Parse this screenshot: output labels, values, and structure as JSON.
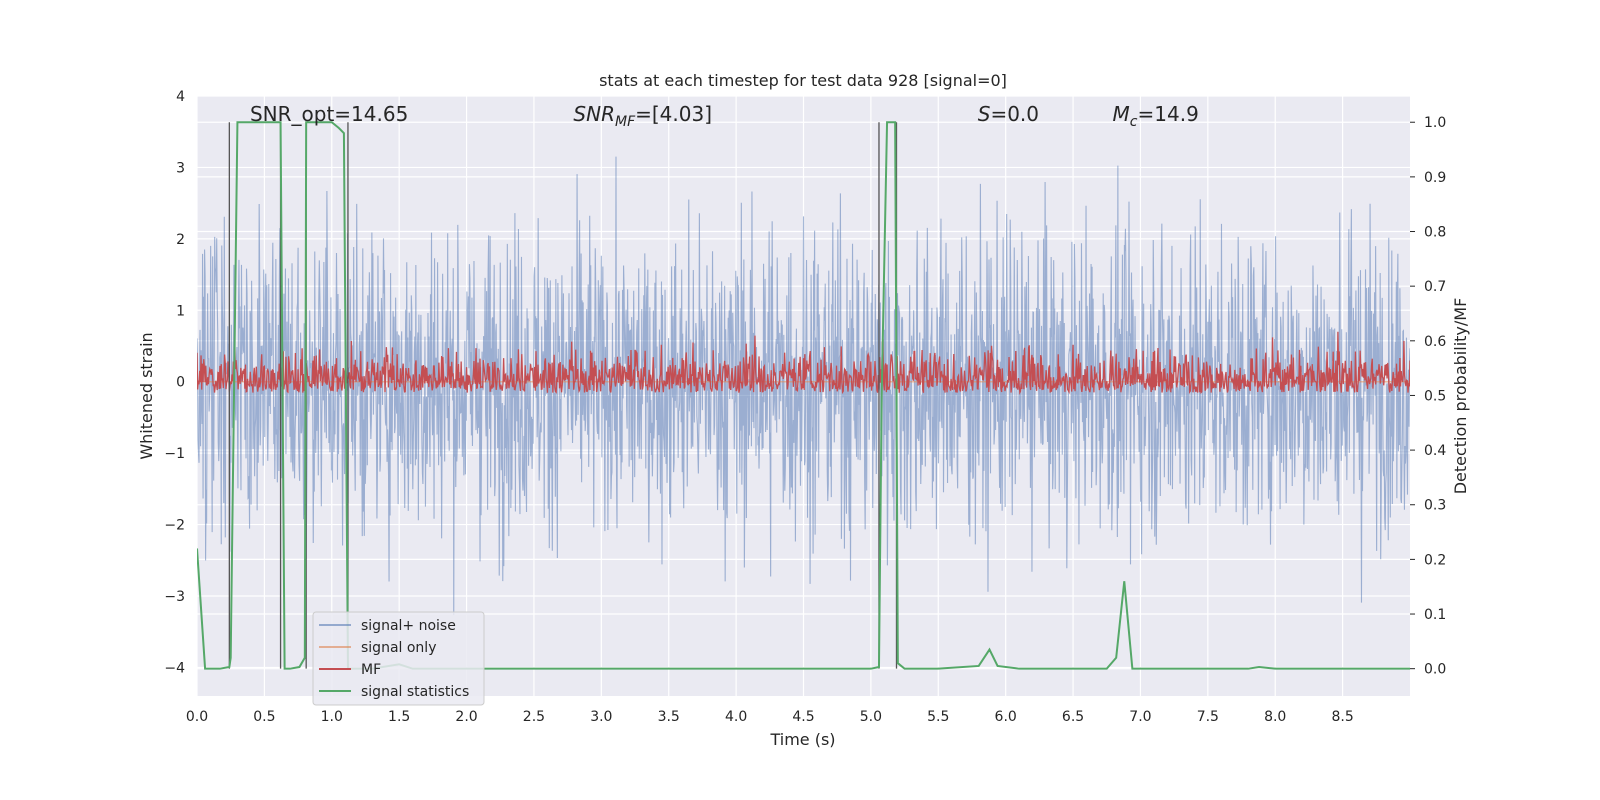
{
  "chart_data": {
    "type": "line",
    "title": "stats at each timestep for test data 928 [signal=0]",
    "xlabel": "Time (s)",
    "ylabel": "Whitened strain",
    "y2label": "Detection probability/MF",
    "xlim": [
      0,
      9.0
    ],
    "ylim": [
      -4.4,
      4.0
    ],
    "y2lim": [
      -0.05,
      1.048
    ],
    "x_ticks": [
      "0.0",
      "0.5",
      "1.0",
      "1.5",
      "2.0",
      "2.5",
      "3.0",
      "3.5",
      "4.0",
      "4.5",
      "5.0",
      "5.5",
      "6.0",
      "6.5",
      "7.0",
      "7.5",
      "8.0",
      "8.5"
    ],
    "y_ticks": [
      "4",
      "3",
      "2",
      "1",
      "0",
      "−1",
      "−2",
      "−3",
      "−4"
    ],
    "y2_ticks": [
      "1.0",
      "0.9",
      "0.8",
      "0.7",
      "0.6",
      "0.5",
      "0.4",
      "0.3",
      "0.2",
      "0.1",
      "0.0"
    ],
    "annotations": [
      {
        "text": "SNR_opt=14.65",
        "x": 0.2
      },
      {
        "text": "SNR",
        "sub": "MF",
        "suffix": "=[4.03]",
        "x": 2.6
      },
      {
        "text": "S",
        "suffix": "=0.0",
        "x": 5.6
      },
      {
        "text": "M",
        "sub": "c",
        "suffix": "=14.9",
        "x": 6.6
      }
    ],
    "legend": {
      "location": "lower-left",
      "entries": [
        "signal+ noise",
        "signal only",
        "MF",
        "signal statistics"
      ]
    },
    "colors": {
      "noise": "#4c72b0",
      "signal_only": "#dd8452",
      "mf": "#c44e52",
      "stats": "#55a868",
      "plot_bg": "#eaeaf2",
      "grid": "#ffffff",
      "vline": "#555555"
    },
    "series": [
      {
        "name": "signal statistics",
        "axis": "y2",
        "x": [
          0.0,
          0.06,
          0.17,
          0.24,
          0.25,
          0.3,
          0.6,
          0.62,
          0.65,
          0.69,
          0.76,
          0.8,
          0.81,
          0.87,
          0.9,
          1.0,
          1.05,
          1.09,
          1.12,
          1.2,
          1.3,
          1.5,
          1.6,
          2.0,
          3.0,
          4.0,
          5.0,
          5.06,
          5.08,
          5.12,
          5.13,
          5.18,
          5.2,
          5.25,
          5.3,
          5.5,
          5.8,
          5.88,
          5.94,
          6.1,
          6.5,
          6.75,
          6.82,
          6.88,
          6.94,
          7.0,
          7.5,
          7.8,
          7.88,
          8.0,
          9.0
        ],
        "y": [
          0.22,
          0.0,
          0.0,
          0.003,
          0.02,
          1.0,
          1.0,
          1.0,
          0.0,
          0.0,
          0.003,
          0.02,
          1.0,
          1.0,
          1.0,
          1.0,
          0.99,
          0.98,
          0.0,
          0.0,
          0.0,
          0.008,
          0.0,
          0.0,
          0.0,
          0.0,
          0.0,
          0.003,
          0.5,
          1.0,
          1.0,
          1.0,
          0.01,
          0.0,
          0.0,
          0.0,
          0.005,
          0.035,
          0.005,
          0.0,
          0.0,
          0.0,
          0.02,
          0.16,
          0.0,
          0.0,
          0.0,
          0.0,
          0.003,
          0.0,
          0.0
        ]
      },
      {
        "name": "MF",
        "axis": "y2",
        "band": [
          0.5,
          0.63
        ]
      },
      {
        "name": "signal+ noise",
        "axis": "y",
        "band": [
          -2.5,
          3.6
        ]
      },
      {
        "name": "signal only",
        "axis": "y",
        "value": 0.0
      }
    ],
    "vlines": [
      0.24,
      0.62,
      0.81,
      1.12,
      5.06,
      5.19
    ]
  }
}
